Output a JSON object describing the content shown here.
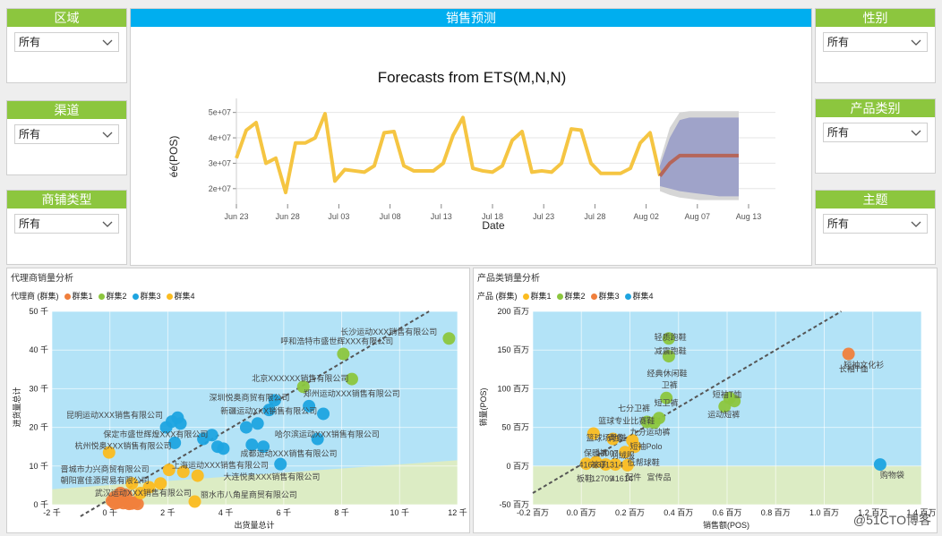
{
  "filters_left": [
    {
      "title": "区域",
      "value": "所有"
    },
    {
      "title": "渠道",
      "value": "所有"
    },
    {
      "title": "商铺类型",
      "value": "所有"
    }
  ],
  "filters_right": [
    {
      "title": "性别",
      "value": "所有"
    },
    {
      "title": "产品类别",
      "value": "所有"
    },
    {
      "title": "主题",
      "value": "所有"
    }
  ],
  "forecast": {
    "header": "销售预测",
    "title": "Forecasts from ETS(M,N,N)",
    "xlabel": "Date",
    "ylabel": "éé(POS)"
  },
  "dealer": {
    "title": "代理商销量分析",
    "legend_label": "代理商 (群集)",
    "xlabel": "出货量总计",
    "ylabel": "进货量总计"
  },
  "product": {
    "title": "产品类销量分析",
    "legend_label": "产品 (群集)",
    "xlabel": "销售额(POS)",
    "ylabel": "销量(POS)"
  },
  "watermark": "@51CTO博客",
  "chart_data": [
    {
      "type": "line",
      "title": "Forecasts from ETS(M,N,N)",
      "xlabel": "Date",
      "ylabel": "éé(POS)",
      "x_ticks": [
        "Jun 23",
        "Jun 28",
        "Jul 03",
        "Jul 08",
        "Jul 13",
        "Jul 18",
        "Jul 23",
        "Jul 28",
        "Aug 02",
        "Aug 07",
        "Aug 13"
      ],
      "y_ticks": [
        "2e+07",
        "3e+07",
        "4e+07",
        "5e+07"
      ],
      "ylim": [
        15000000,
        52000000
      ],
      "history_color": "#f5c542",
      "forecast_color": "#b5665a",
      "band_inner_color": "#9fa3c9",
      "band_outer_color": "#d6d6d6",
      "series": [
        {
          "values": [
            32000000,
            43000000,
            46000000,
            30000000,
            32000000,
            18500000,
            38000000,
            38000000,
            40000000,
            49500000,
            23000000,
            27500000,
            27000000,
            26500000,
            29000000,
            42000000,
            42500000,
            29000000,
            27000000,
            27000000,
            27000000,
            30000000,
            41000000,
            48000000,
            28000000,
            27000000,
            26500000,
            29000000,
            39000000,
            42500000,
            26500000,
            27000000,
            26500000,
            30000000,
            43500000,
            43000000,
            30000000,
            26000000,
            26000000,
            26000000,
            28000000,
            38000000,
            42000000,
            25000000
          ]
        },
        {
          "values": [
            25000000,
            30000000,
            33000000,
            33000000,
            33000000,
            33000000,
            33000000,
            33000000,
            33000000
          ]
        }
      ],
      "band_inner": {
        "low": [
          21000000,
          20000000,
          19000000,
          18500000,
          18000000,
          17500000,
          17000000,
          17000000,
          17000000
        ],
        "high": [
          29000000,
          40000000,
          47000000,
          48000000,
          48000000,
          48000000,
          48000000,
          48000000,
          48000000
        ]
      },
      "band_outer": {
        "low": [
          19000000,
          17500000,
          16500000,
          16000000,
          15500000,
          15500000,
          15500000,
          15500000,
          15500000
        ],
        "high": [
          31000000,
          44000000,
          50000000,
          50500000,
          50500000,
          50500000,
          50500000,
          50500000,
          50500000
        ]
      }
    },
    {
      "type": "scatter",
      "title": "代理商销量分析",
      "xlabel": "出货量总计",
      "ylabel": "进货量总计",
      "xlim": [
        -2,
        12.2
      ],
      "ylim": [
        0,
        50
      ],
      "x_ticks": [
        "-2 千",
        "0 千",
        "2 千",
        "4 千",
        "6 千",
        "8 千",
        "10 千",
        "12 千"
      ],
      "y_ticks": [
        "0 千",
        "10 千",
        "20 千",
        "30 千",
        "40 千",
        "50 千"
      ],
      "series": [
        {
          "name": "群集1",
          "color": "#f07f3c",
          "points": [
            [
              0.1,
              1
            ],
            [
              0.3,
              0.5
            ],
            [
              0.5,
              0.4
            ],
            [
              0.7,
              0.2
            ],
            [
              0.2,
              2
            ],
            [
              0.5,
              1.2
            ],
            [
              0.8,
              0.3
            ],
            [
              0.9,
              0.6
            ],
            [
              0.4,
              3
            ],
            [
              0.6,
              2.5
            ],
            [
              1,
              0.2
            ],
            [
              0.2,
              0.3
            ]
          ]
        },
        {
          "name": "群集2",
          "color": "#8cc63e",
          "points": [
            [
              11.9,
              43
            ],
            [
              8.2,
              39
            ],
            [
              8.5,
              32.5
            ],
            [
              6.8,
              30.5
            ]
          ]
        },
        {
          "name": "群集3",
          "color": "#1ea4e0",
          "points": [
            [
              7,
              25.5
            ],
            [
              5.8,
              27
            ],
            [
              7.5,
              23.5
            ],
            [
              5.6,
              24.5
            ],
            [
              4.8,
              20
            ],
            [
              5.2,
              21
            ],
            [
              7.3,
              17
            ],
            [
              5,
              15.5
            ],
            [
              5.4,
              15
            ],
            [
              3.8,
              15
            ],
            [
              4,
              14.5
            ],
            [
              3.3,
              17
            ],
            [
              3.6,
              18
            ],
            [
              2.5,
              21
            ],
            [
              2.2,
              21.5
            ],
            [
              2.4,
              22.5
            ],
            [
              2,
              20
            ],
            [
              6,
              10.5
            ],
            [
              2.3,
              16
            ]
          ]
        },
        {
          "name": "群集4",
          "color": "#fbbc20",
          "points": [
            [
              0,
              13.5
            ],
            [
              2.1,
              9
            ],
            [
              2.6,
              8.5
            ],
            [
              3.1,
              7.5
            ],
            [
              1.8,
              5.5
            ],
            [
              1.4,
              4.5
            ],
            [
              1.1,
              3
            ],
            [
              3,
              0.8
            ],
            [
              0.8,
              5.5
            ]
          ]
        }
      ],
      "labels": [
        {
          "text": "长沙运动XXX销售有限公司",
          "x": 8.1,
          "y": 44
        },
        {
          "text": "呼和浩特市盛世辉XXX有限公司",
          "x": 6,
          "y": 41.5
        },
        {
          "text": "北京XXXXXX销售有限公司",
          "x": 5,
          "y": 32
        },
        {
          "text": "深圳悦奥商贸有限公司",
          "x": 3.5,
          "y": 27
        },
        {
          "text": "郑州运动XXX销售有限公司",
          "x": 6.8,
          "y": 28
        },
        {
          "text": "新疆运动XXX销售有限公司",
          "x": 3.9,
          "y": 23.5
        },
        {
          "text": "昆明运动XXX销售有限公司",
          "x": -1.5,
          "y": 22.5
        },
        {
          "text": "哈尔滨运动XXX销售有限公司",
          "x": 5.8,
          "y": 17.5
        },
        {
          "text": "保定市盛世辉煌XXX有限公司",
          "x": -0.2,
          "y": 17.5
        },
        {
          "text": "杭州悦奥XXX销售有限公司",
          "x": -1.2,
          "y": 14.5
        },
        {
          "text": "成都运动XXX销售有限公司",
          "x": 4.6,
          "y": 12.5
        },
        {
          "text": "晋城市力兴商贸有限公司",
          "x": -1.7,
          "y": 8.5
        },
        {
          "text": "上海运动XXX销售有限公司",
          "x": 2.2,
          "y": 9.5
        },
        {
          "text": "朝阳富佳源贸易有限公司",
          "x": -1.7,
          "y": 5.5
        },
        {
          "text": "武汉运动XXX销售有限公司",
          "x": -0.5,
          "y": 2.3
        },
        {
          "text": "丽水市八角星商贸有限公司",
          "x": 3.2,
          "y": 1.8
        },
        {
          "text": "大连悦奥XXX销售有限公司",
          "x": 4,
          "y": 6.5
        }
      ]
    },
    {
      "type": "scatter",
      "title": "产品类销量分析",
      "xlabel": "销售额(POS)",
      "ylabel": "销量(POS)",
      "xlim": [
        -0.2,
        1.4
      ],
      "ylim": [
        -50,
        200
      ],
      "x_ticks": [
        "-0.2 百万",
        "0.0 百万",
        "0.2 百万",
        "0.4 百万",
        "0.6 百万",
        "0.8 百万",
        "1.0 百万",
        "1.2 百万",
        "1.4 百万"
      ],
      "y_ticks": [
        "-50 百万",
        "0 百万",
        "50 百万",
        "100 百万",
        "150 百万",
        "200 百万"
      ],
      "series": [
        {
          "name": "群集1",
          "color": "#fbbc20",
          "points": [
            [
              0.05,
              42
            ],
            [
              0.13,
              35
            ],
            [
              0.21,
              33
            ],
            [
              0.18,
              18
            ],
            [
              0.22,
              25
            ],
            [
              0.02,
              3
            ],
            [
              0.06,
              5
            ],
            [
              0.1,
              2
            ],
            [
              0.14,
              2
            ],
            [
              0.19,
              1
            ]
          ]
        },
        {
          "name": "群集2",
          "color": "#8cc63e",
          "points": [
            [
              0.36,
              165
            ],
            [
              0.36,
              142
            ],
            [
              0.35,
              88
            ],
            [
              0.32,
              62
            ],
            [
              0.27,
              57
            ],
            [
              0.3,
              56
            ],
            [
              0.59,
              77
            ],
            [
              0.63,
              84
            ],
            [
              0.61,
              88
            ]
          ]
        },
        {
          "name": "群集3",
          "color": "#f07f3c",
          "points": [
            [
              1.1,
              145
            ]
          ]
        },
        {
          "name": "群集4",
          "color": "#1ea4e0",
          "points": [
            [
              1.23,
              2
            ]
          ]
        }
      ],
      "labels": [
        {
          "text": "轻质跑鞋",
          "x": 0.3,
          "y": 163
        },
        {
          "text": "减震跑鞋",
          "x": 0.3,
          "y": 145
        },
        {
          "text": "经典休闲鞋",
          "x": 0.27,
          "y": 116
        },
        {
          "text": "卫裤",
          "x": 0.33,
          "y": 101
        },
        {
          "text": "短袖T恤",
          "x": 0.54,
          "y": 89
        },
        {
          "text": "七分卫裤",
          "x": 0.15,
          "y": 71
        },
        {
          "text": "短卫裤",
          "x": 0.3,
          "y": 78
        },
        {
          "text": "运动短裤",
          "x": 0.52,
          "y": 63
        },
        {
          "text": "篮球专业比赛鞋",
          "x": 0.07,
          "y": 55
        },
        {
          "text": "长袖T恤",
          "x": 1.06,
          "y": 122
        },
        {
          "text": "九分运动裤",
          "x": 0.2,
          "y": 40
        },
        {
          "text": "篮球场地鞋",
          "x": 0.02,
          "y": 33
        },
        {
          "text": "背包",
          "x": 0.11,
          "y": 33
        },
        {
          "text": "短袖Polo",
          "x": 0.2,
          "y": 22
        },
        {
          "text": "保暖裤",
          "x": 0.01,
          "y": 13
        },
        {
          "text": "13007",
          "x": 0.06,
          "y": 13
        },
        {
          "text": "羽绒服",
          "x": 0.12,
          "y": 10
        },
        {
          "text": "41613",
          "x": -0.01,
          "y": -2
        },
        {
          "text": "袜子",
          "x": 0.04,
          "y": -2
        },
        {
          "text": "31314",
          "x": 0.08,
          "y": -2
        },
        {
          "text": "低帮球鞋",
          "x": 0.19,
          "y": 1
        },
        {
          "text": "板鞋",
          "x": -0.02,
          "y": -20
        },
        {
          "text": "12709",
          "x": 0.04,
          "y": -20
        },
        {
          "text": "41614",
          "x": 0.12,
          "y": -20
        },
        {
          "text": "配件",
          "x": 0.18,
          "y": -18
        },
        {
          "text": "宣传品",
          "x": 0.27,
          "y": -18
        },
        {
          "text": "购物袋",
          "x": 1.23,
          "y": -15
        },
        {
          "text": "短袖文化衫",
          "x": 1.08,
          "y": 127
        }
      ]
    }
  ]
}
